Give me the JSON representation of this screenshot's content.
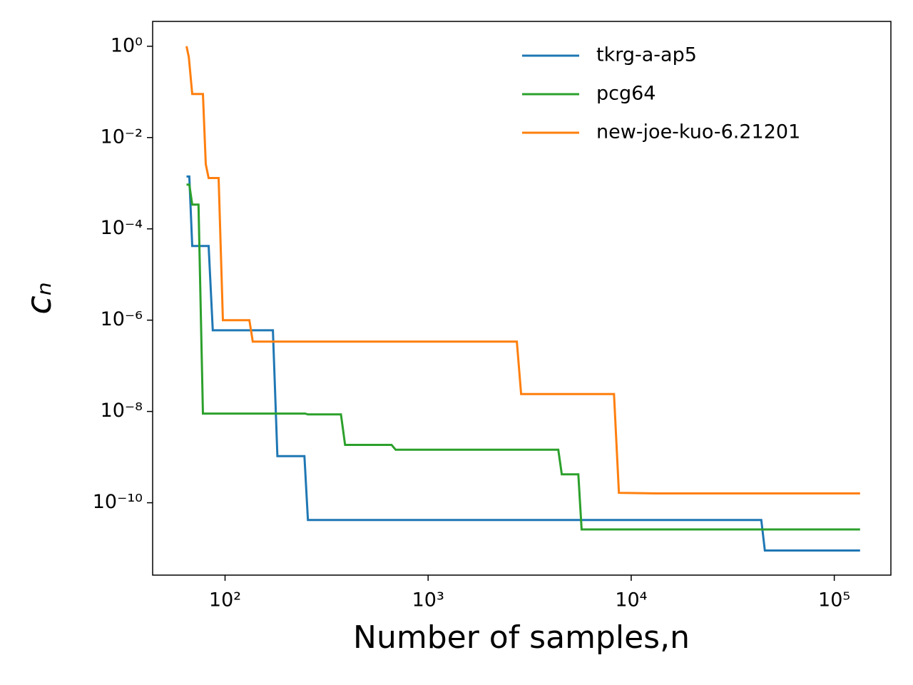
{
  "chart_data": {
    "type": "line",
    "x_label": "Number of samples,n",
    "y_label": "cₙ",
    "x_scale": "log",
    "y_scale": "log",
    "xlim": [
      44,
      190000
    ],
    "ylim": [
      2.6e-12,
      3.5
    ],
    "xticks": [
      {
        "value": 100,
        "label": "10²"
      },
      {
        "value": 1000,
        "label": "10³"
      },
      {
        "value": 10000,
        "label": "10⁴"
      },
      {
        "value": 100000,
        "label": "10⁵"
      }
    ],
    "yticks": [
      {
        "value": 1,
        "label": "10⁰"
      },
      {
        "value": 0.01,
        "label": "10⁻²"
      },
      {
        "value": 0.0001,
        "label": "10⁻⁴"
      },
      {
        "value": 1e-06,
        "label": "10⁻⁶"
      },
      {
        "value": 1e-08,
        "label": "10⁻⁸"
      },
      {
        "value": 1e-10,
        "label": "10⁻¹⁰"
      }
    ],
    "legend": "upper right",
    "series": [
      {
        "name": "tkrg-a-ap5",
        "color": "#1f77b4",
        "x": [
          64.6,
          66.7,
          68.9,
          83,
          87,
          172,
          181,
          246,
          256,
          43700,
          45500,
          134000
        ],
        "values": [
          0.0014,
          0.0014,
          4.2e-05,
          4.2e-05,
          6e-07,
          6e-07,
          1.05e-09,
          1.05e-09,
          4.2e-11,
          4.2e-11,
          9e-12,
          9e-12
        ]
      },
      {
        "name": "pcg64",
        "color": "#2ca02c",
        "x": [
          64.6,
          66.7,
          68.9,
          74,
          77.8,
          248,
          256,
          372,
          390,
          661,
          692,
          4375,
          4550,
          5490,
          5700,
          134000
        ],
        "values": [
          0.00093,
          0.00093,
          0.00034,
          0.00034,
          9e-09,
          9e-09,
          8.6e-09,
          8.6e-09,
          1.85e-09,
          1.85e-09,
          1.45e-09,
          1.45e-09,
          4.2e-10,
          4.2e-10,
          2.6e-11,
          2.6e-11
        ]
      },
      {
        "name": "new-joe-kuo-6.21201",
        "color": "#ff7f0e",
        "x": [
          64.6,
          66.3,
          68.9,
          77.8,
          80.4,
          83,
          93,
          97.6,
          131.7,
          137,
          2735,
          2870,
          8230,
          8700,
          13300,
          134000
        ],
        "values": [
          1,
          0.58,
          0.09,
          0.09,
          0.0026,
          0.0013,
          0.0013,
          1e-06,
          1e-06,
          3.4e-07,
          3.4e-07,
          2.4e-08,
          2.4e-08,
          1.65e-10,
          1.6e-10,
          1.6e-10
        ]
      }
    ]
  }
}
